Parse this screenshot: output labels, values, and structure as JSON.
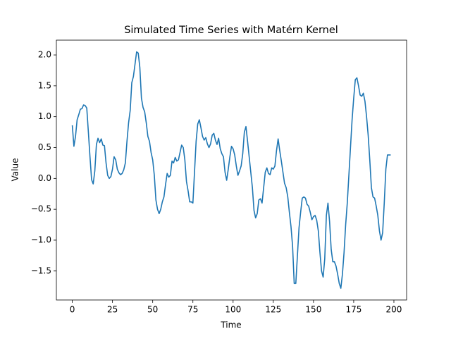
{
  "chart_data": {
    "type": "line",
    "title": "Simulated Time Series with Matérn Kernel",
    "xlabel": "Time",
    "ylabel": "Value",
    "color": "#1f77b4",
    "x": [
      0,
      1,
      2,
      3,
      4,
      5,
      6,
      7,
      8,
      9,
      10,
      11,
      12,
      13,
      14,
      15,
      16,
      17,
      18,
      19,
      20,
      21,
      22,
      23,
      24,
      25,
      26,
      27,
      28,
      29,
      30,
      31,
      32,
      33,
      34,
      35,
      36,
      37,
      38,
      39,
      40,
      41,
      42,
      43,
      44,
      45,
      46,
      47,
      48,
      49,
      50,
      51,
      52,
      53,
      54,
      55,
      56,
      57,
      58,
      59,
      60,
      61,
      62,
      63,
      64,
      65,
      66,
      67,
      68,
      69,
      70,
      71,
      72,
      73,
      74,
      75,
      76,
      77,
      78,
      79,
      80,
      81,
      82,
      83,
      84,
      85,
      86,
      87,
      88,
      89,
      90,
      91,
      92,
      93,
      94,
      95,
      96,
      97,
      98,
      99,
      100,
      101,
      102,
      103,
      104,
      105,
      106,
      107,
      108,
      109,
      110,
      111,
      112,
      113,
      114,
      115,
      116,
      117,
      118,
      119,
      120,
      121,
      122,
      123,
      124,
      125,
      126,
      127,
      128,
      129,
      130,
      131,
      132,
      133,
      134,
      135,
      136,
      137,
      138,
      139,
      140,
      141,
      142,
      143,
      144,
      145,
      146,
      147,
      148,
      149,
      150,
      151,
      152,
      153,
      154,
      155,
      156,
      157,
      158,
      159,
      160,
      161,
      162,
      163,
      164,
      165,
      166,
      167,
      168,
      169,
      170,
      171,
      172,
      173,
      174,
      175,
      176,
      177,
      178,
      179,
      180,
      181,
      182,
      183,
      184,
      185,
      186,
      187,
      188,
      189,
      190,
      191,
      192,
      193,
      194,
      195,
      196,
      197,
      198
    ],
    "values": [
      0.86,
      0.52,
      0.68,
      0.95,
      1.03,
      1.12,
      1.13,
      1.19,
      1.18,
      1.14,
      0.75,
      0.35,
      -0.02,
      -0.09,
      0.12,
      0.55,
      0.65,
      0.58,
      0.64,
      0.54,
      0.53,
      0.25,
      0.05,
      0.0,
      0.03,
      0.15,
      0.35,
      0.3,
      0.15,
      0.09,
      0.06,
      0.08,
      0.14,
      0.25,
      0.6,
      0.9,
      1.1,
      1.55,
      1.65,
      1.85,
      2.05,
      2.03,
      1.8,
      1.3,
      1.15,
      1.08,
      0.9,
      0.68,
      0.6,
      0.42,
      0.3,
      0.05,
      -0.35,
      -0.5,
      -0.57,
      -0.5,
      -0.38,
      -0.3,
      -0.1,
      0.08,
      0.02,
      0.05,
      0.28,
      0.25,
      0.34,
      0.28,
      0.3,
      0.42,
      0.54,
      0.5,
      0.3,
      -0.05,
      -0.2,
      -0.38,
      -0.38,
      -0.4,
      0.1,
      0.6,
      0.88,
      0.95,
      0.82,
      0.68,
      0.62,
      0.66,
      0.56,
      0.5,
      0.56,
      0.7,
      0.73,
      0.62,
      0.55,
      0.65,
      0.48,
      0.4,
      0.35,
      0.1,
      -0.03,
      0.15,
      0.35,
      0.52,
      0.48,
      0.38,
      0.2,
      0.05,
      0.12,
      0.2,
      0.4,
      0.75,
      0.84,
      0.6,
      0.35,
      0.1,
      -0.15,
      -0.52,
      -0.64,
      -0.57,
      -0.35,
      -0.33,
      -0.4,
      -0.15,
      0.1,
      0.17,
      0.08,
      0.06,
      0.17,
      0.15,
      0.2,
      0.45,
      0.64,
      0.45,
      0.28,
      0.1,
      -0.08,
      -0.15,
      -0.3,
      -0.55,
      -0.78,
      -1.1,
      -1.7,
      -1.7,
      -1.25,
      -0.8,
      -0.55,
      -0.32,
      -0.3,
      -0.32,
      -0.42,
      -0.45,
      -0.55,
      -0.67,
      -0.62,
      -0.6,
      -0.68,
      -0.85,
      -1.2,
      -1.5,
      -1.6,
      -1.3,
      -0.6,
      -0.4,
      -0.7,
      -1.15,
      -1.35,
      -1.35,
      -1.42,
      -1.55,
      -1.7,
      -1.78,
      -1.55,
      -1.2,
      -0.75,
      -0.4,
      0.05,
      0.5,
      0.95,
      1.3,
      1.6,
      1.63,
      1.5,
      1.35,
      1.33,
      1.38,
      1.25,
      1.0,
      0.7,
      0.3,
      -0.15,
      -0.3,
      -0.32,
      -0.45,
      -0.6,
      -0.85,
      -1.0,
      -0.88,
      -0.4,
      0.15,
      0.38,
      0.38,
      0.38
    ],
    "xlim": [
      -9.9,
      207.9
    ],
    "xticks": [
      0,
      25,
      50,
      75,
      100,
      125,
      150,
      175,
      200
    ],
    "ylim": [
      -1.97,
      2.24
    ],
    "yticks": [
      {
        "value": -1.5,
        "label": "−1.5"
      },
      {
        "value": -1.0,
        "label": "−1.0"
      },
      {
        "value": -0.5,
        "label": "−0.5"
      },
      {
        "value": 0.0,
        "label": "0.0"
      },
      {
        "value": 0.5,
        "label": "0.5"
      },
      {
        "value": 1.0,
        "label": "1.0"
      },
      {
        "value": 1.5,
        "label": "1.5"
      },
      {
        "value": 2.0,
        "label": "2.0"
      }
    ]
  }
}
